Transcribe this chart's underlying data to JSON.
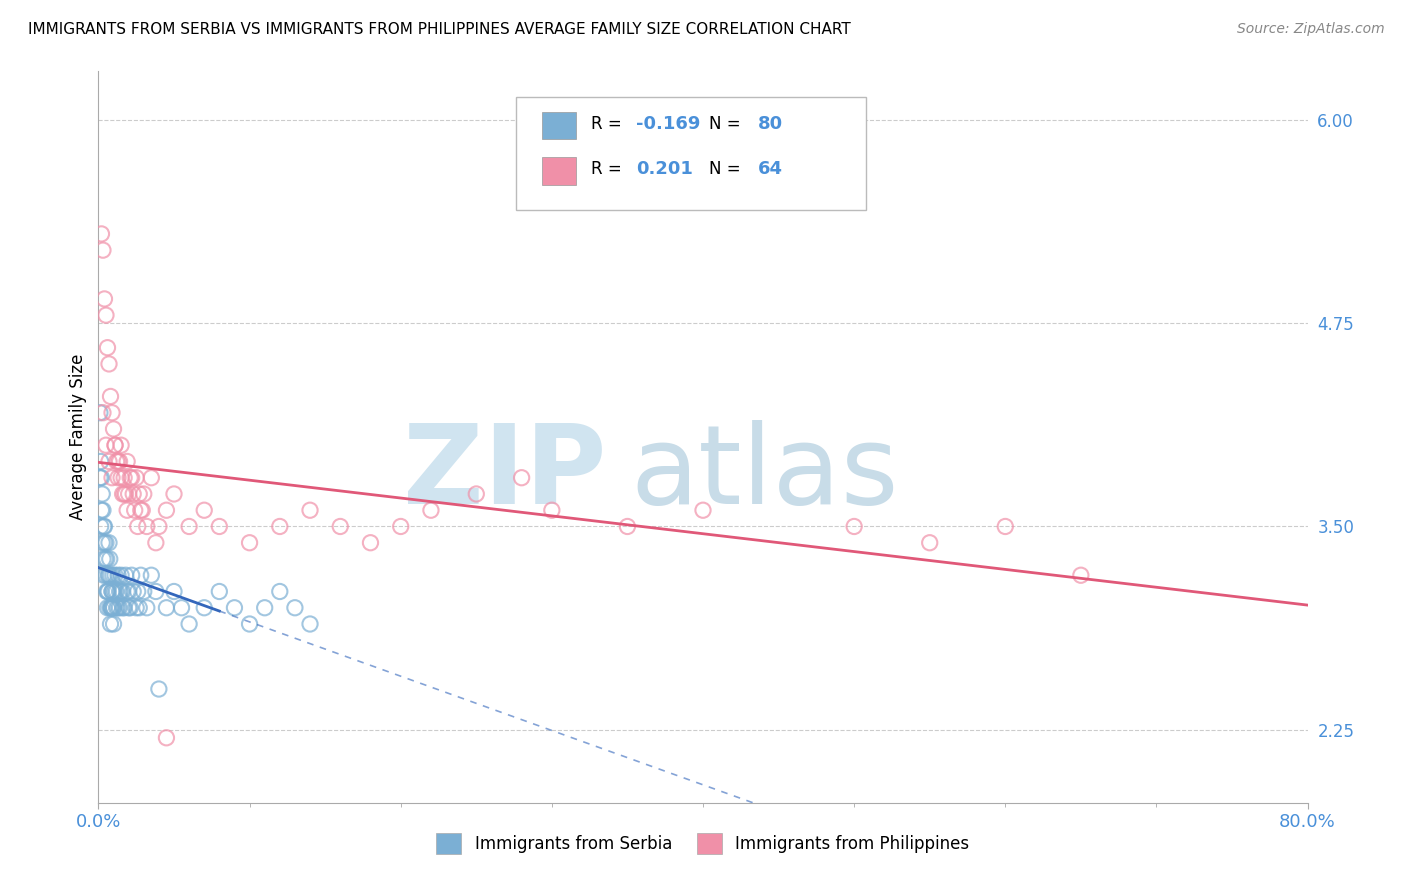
{
  "title": "IMMIGRANTS FROM SERBIA VS IMMIGRANTS FROM PHILIPPINES AVERAGE FAMILY SIZE CORRELATION CHART",
  "source": "Source: ZipAtlas.com",
  "ylabel": "Average Family Size",
  "yticks_right": [
    2.25,
    3.5,
    4.75,
    6.0
  ],
  "serbia_color": "#7bafd4",
  "serbia_edge_color": "#5599cc",
  "philippines_color": "#f090a8",
  "philippines_edge_color": "#e06888",
  "serbia_line_color": "#3366bb",
  "philippines_line_color": "#e05878",
  "watermark_zip_color": "#d0e4f0",
  "watermark_atlas_color": "#c8dce8",
  "xmin": 0.0,
  "xmax": 80.0,
  "ymin": 1.8,
  "ymax": 6.3,
  "serbia_x": [
    0.1,
    0.15,
    0.2,
    0.25,
    0.3,
    0.35,
    0.4,
    0.5,
    0.55,
    0.6,
    0.65,
    0.7,
    0.75,
    0.8,
    0.85,
    0.9,
    0.95,
    1.0,
    1.0,
    1.1,
    1.1,
    1.2,
    1.2,
    1.3,
    1.3,
    1.4,
    1.4,
    1.5,
    1.5,
    1.6,
    1.6,
    1.7,
    1.8,
    1.9,
    2.0,
    2.0,
    2.1,
    2.2,
    2.3,
    2.5,
    2.6,
    2.7,
    2.8,
    3.0,
    3.2,
    3.5,
    3.8,
    4.0,
    4.5,
    5.0,
    5.5,
    6.0,
    7.0,
    8.0,
    9.0,
    10.0,
    11.0,
    12.0,
    13.0,
    14.0,
    0.1,
    0.15,
    0.2,
    0.25,
    0.3,
    0.35,
    0.4,
    0.45,
    0.5,
    0.55,
    0.6,
    0.65,
    0.7,
    0.75,
    0.8,
    0.85,
    0.9,
    0.9,
    1.0,
    1.0
  ],
  "serbia_y": [
    3.8,
    3.5,
    3.6,
    3.4,
    3.3,
    3.2,
    3.5,
    3.4,
    3.3,
    3.1,
    3.2,
    3.4,
    3.3,
    3.2,
    3.0,
    3.1,
    3.2,
    3.1,
    3.0,
    3.2,
    3.1,
    3.0,
    3.1,
    3.0,
    3.2,
    3.1,
    3.0,
    3.2,
    3.1,
    3.0,
    3.1,
    3.0,
    3.2,
    3.1,
    3.0,
    3.1,
    3.0,
    3.2,
    3.1,
    3.0,
    3.1,
    3.0,
    3.2,
    3.1,
    3.0,
    3.2,
    3.1,
    2.5,
    3.0,
    3.1,
    3.0,
    2.9,
    3.0,
    3.1,
    3.0,
    2.9,
    3.0,
    3.1,
    3.0,
    2.9,
    4.2,
    3.9,
    3.8,
    3.7,
    3.6,
    3.5,
    3.4,
    3.3,
    3.2,
    3.1,
    3.0,
    3.1,
    3.2,
    3.0,
    2.9,
    3.0,
    3.1,
    3.0,
    2.9,
    3.0
  ],
  "phil_x": [
    0.2,
    0.3,
    0.4,
    0.5,
    0.6,
    0.7,
    0.8,
    0.9,
    1.0,
    1.1,
    1.2,
    1.3,
    1.4,
    1.5,
    1.6,
    1.7,
    1.8,
    1.9,
    2.0,
    2.2,
    2.4,
    2.6,
    2.8,
    3.0,
    3.5,
    4.0,
    4.5,
    5.0,
    6.0,
    7.0,
    8.0,
    10.0,
    12.0,
    14.0,
    16.0,
    18.0,
    20.0,
    22.0,
    25.0,
    28.0,
    30.0,
    35.0,
    40.0,
    50.0,
    55.0,
    60.0,
    65.0,
    0.3,
    0.5,
    0.7,
    0.9,
    1.1,
    1.3,
    1.5,
    1.7,
    1.9,
    2.1,
    2.3,
    2.5,
    2.7,
    2.9,
    3.2,
    3.8,
    4.5
  ],
  "phil_y": [
    5.3,
    5.2,
    4.9,
    4.8,
    4.6,
    4.5,
    4.3,
    4.2,
    4.1,
    4.0,
    3.9,
    3.8,
    3.9,
    4.0,
    3.7,
    3.8,
    3.7,
    3.6,
    3.7,
    3.8,
    3.6,
    3.5,
    3.6,
    3.7,
    3.8,
    3.5,
    3.6,
    3.7,
    3.5,
    3.6,
    3.5,
    3.4,
    3.5,
    3.6,
    3.5,
    3.4,
    3.5,
    3.6,
    3.7,
    3.8,
    3.6,
    3.5,
    3.6,
    3.5,
    3.4,
    3.5,
    3.2,
    4.2,
    4.0,
    3.9,
    3.8,
    4.0,
    3.9,
    3.8,
    3.7,
    3.9,
    3.8,
    3.7,
    3.8,
    3.7,
    3.6,
    3.5,
    3.4,
    2.2
  ]
}
